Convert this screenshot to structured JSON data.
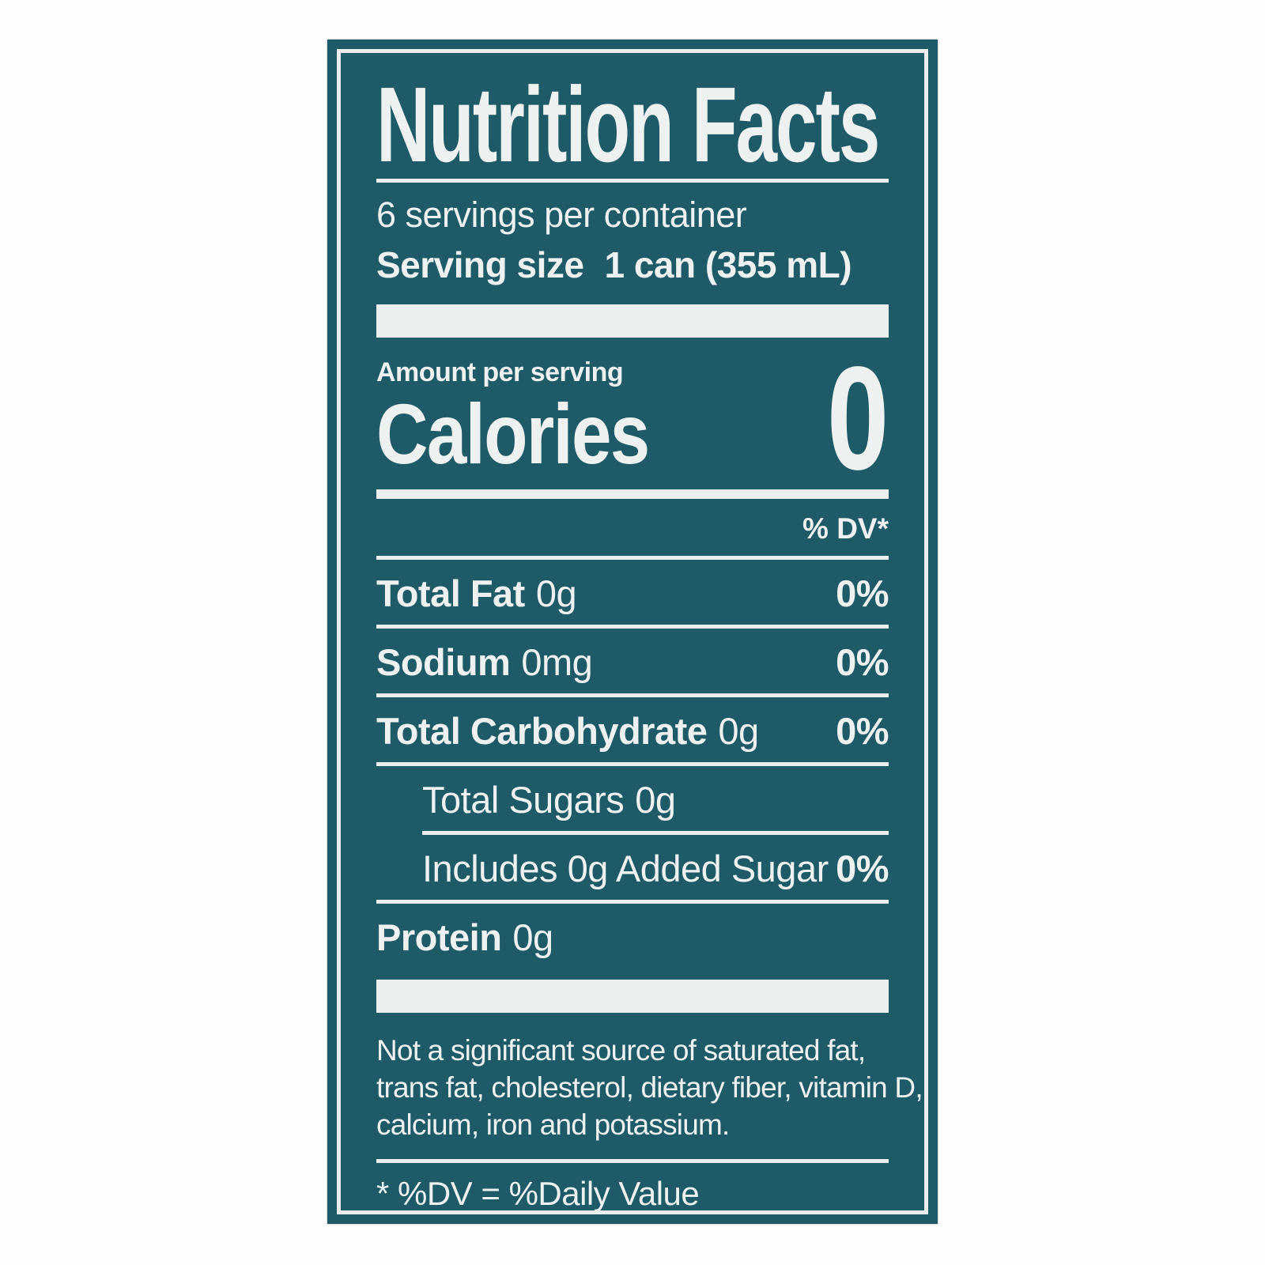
{
  "label": {
    "title": "Nutrition Facts",
    "servings_per_container": "6 servings per container",
    "serving_size": {
      "label": "Serving size",
      "value": "1 can (355 mL)"
    },
    "amount_per_serving": "Amount per serving",
    "calories": {
      "label": "Calories",
      "value": "0"
    },
    "dv_header": "% DV*",
    "nutrients": [
      {
        "name": "Total Fat",
        "amount": "0g",
        "dv": "0%"
      },
      {
        "name": "Sodium",
        "amount": "0mg",
        "dv": "0%"
      },
      {
        "name": "Total Carbohydrate",
        "amount": "0g",
        "dv": "0%"
      },
      {
        "name": "Total Sugars",
        "amount": "0g",
        "dv": ""
      },
      {
        "name": "Includes 0g Added Sugar",
        "amount": "",
        "dv": "0%"
      },
      {
        "name": "Protein",
        "amount": "0g",
        "dv": ""
      }
    ],
    "footnote_lines": [
      "Not a significant source of saturated fat,",
      "trans fat, cholesterol, dietary fiber, vitamin D,",
      "calcium, iron and potassium."
    ],
    "dv_definition": "* %DV = %Daily Value",
    "colors": {
      "label_background": "#1E5A68",
      "text": "#EDF2F0",
      "page_background": "#FDFDFD"
    }
  }
}
